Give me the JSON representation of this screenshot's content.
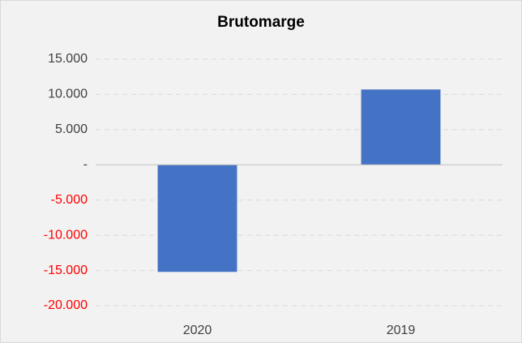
{
  "chart_data": {
    "type": "bar",
    "title": "Brutomarge",
    "categories": [
      "2020",
      "2019"
    ],
    "values": [
      -15200,
      10700
    ],
    "color": "#4472c4",
    "ylim": [
      -20000,
      15000
    ],
    "yticks": [
      {
        "value": -20000,
        "label": "-20.000"
      },
      {
        "value": -15000,
        "label": "-15.000"
      },
      {
        "value": -10000,
        "label": "-10.000"
      },
      {
        "value": -5000,
        "label": "-5.000"
      },
      {
        "value": 0,
        "label": "-"
      },
      {
        "value": 5000,
        "label": "5.000"
      },
      {
        "value": 10000,
        "label": "10.000"
      },
      {
        "value": 15000,
        "label": "15.000"
      }
    ],
    "grid": true,
    "negative_tick_color": "#ff0000"
  }
}
